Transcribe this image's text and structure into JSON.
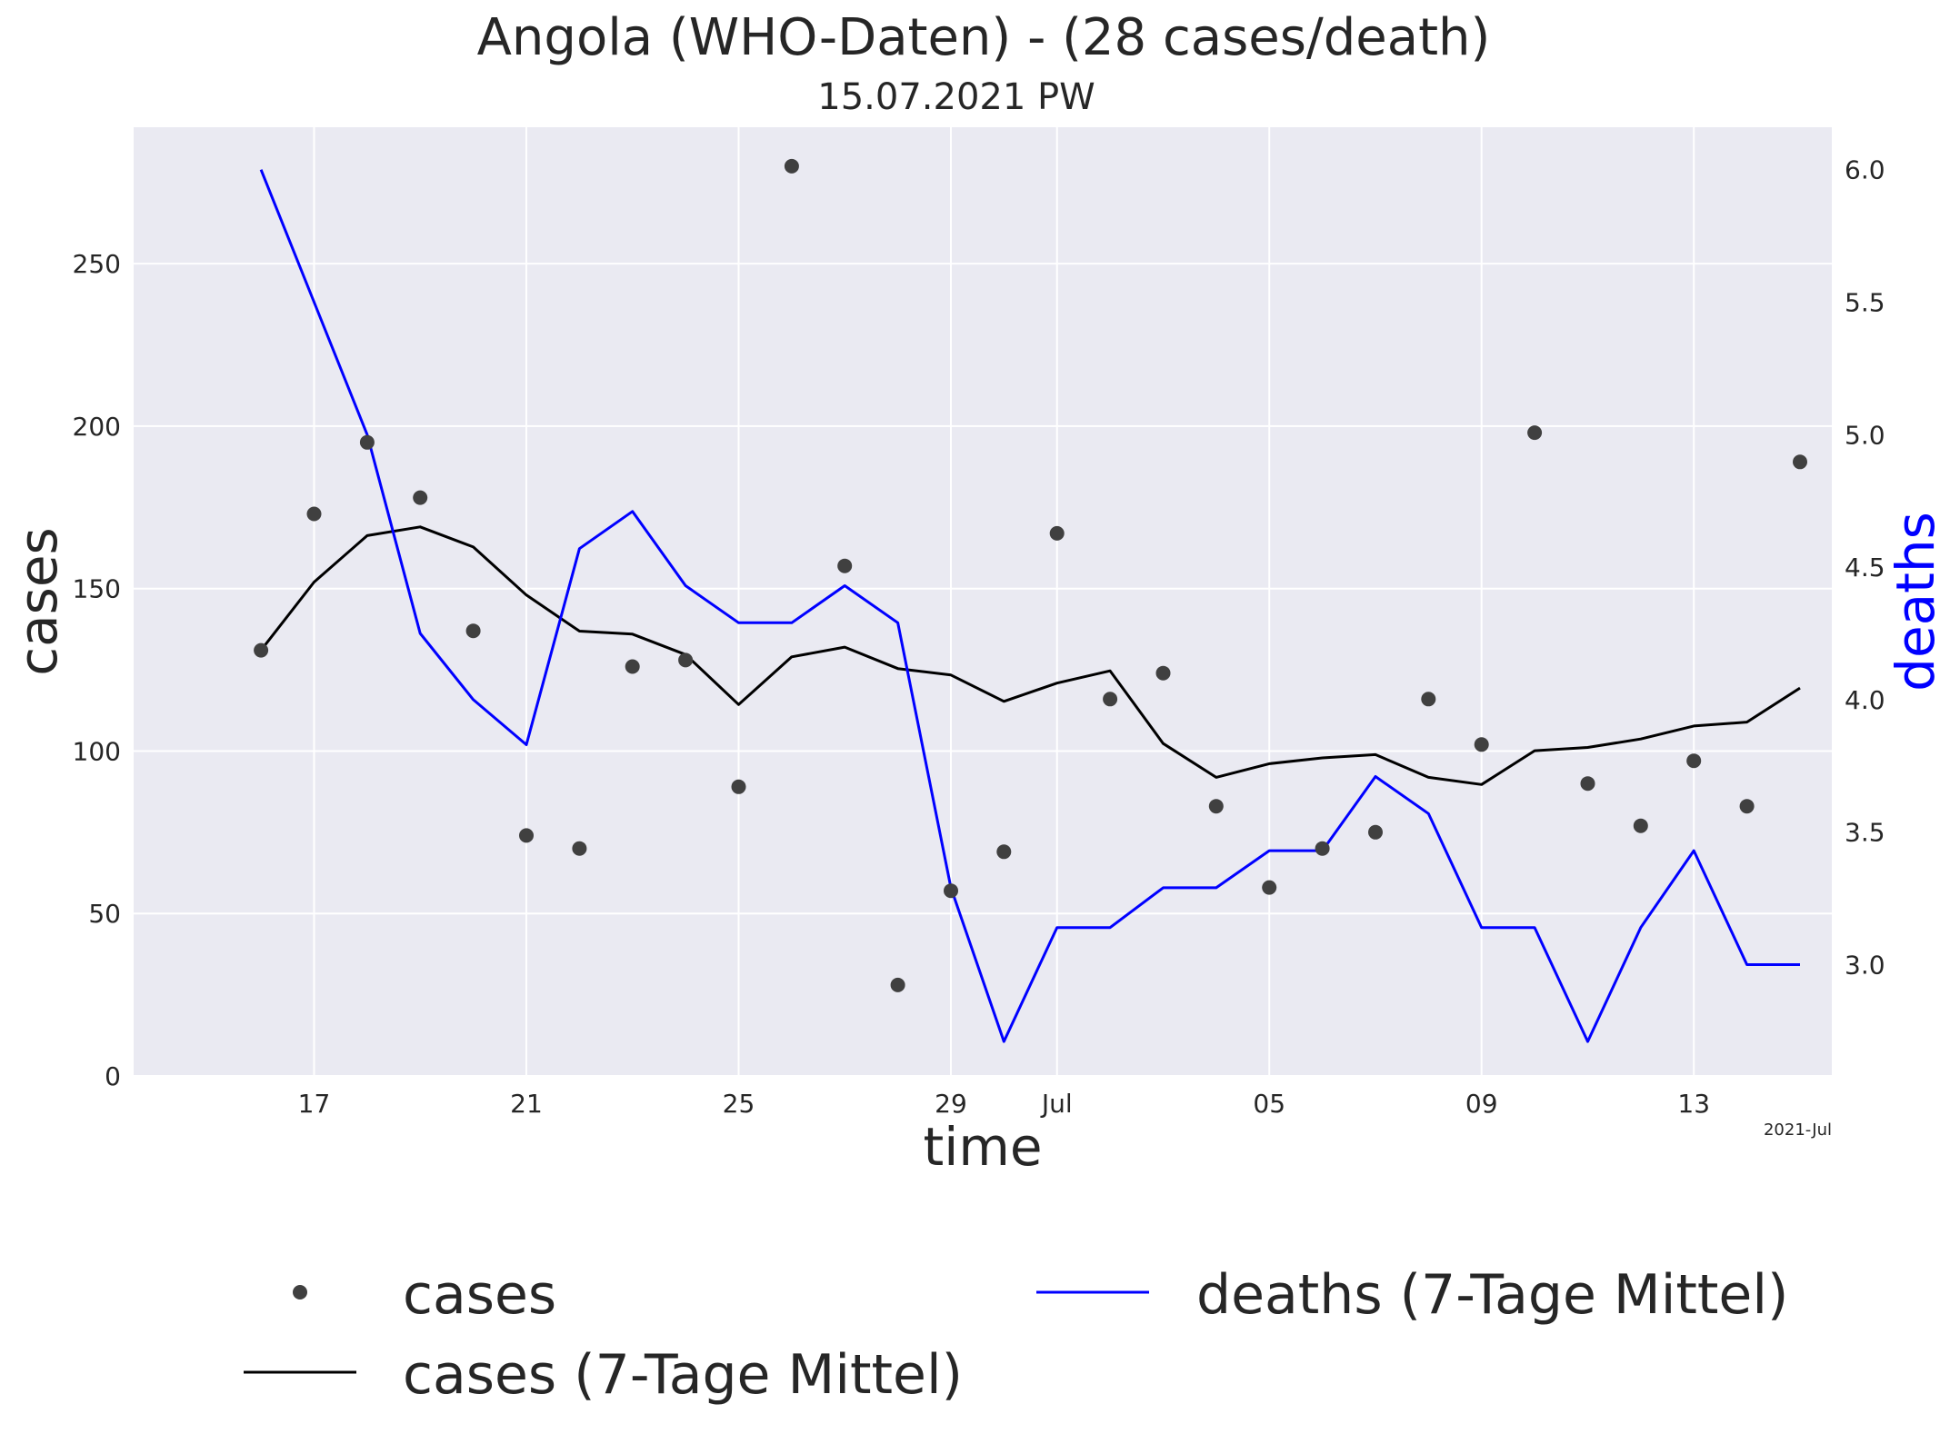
{
  "chart_data": {
    "type": "line",
    "title": "Angola (WHO-Daten) - (28 cases/death)",
    "subtitle": "15.07.2021 PW",
    "xlabel": "time",
    "ylabel": "cases",
    "y2label": "deaths",
    "x_offset_label": "2021-Jul",
    "x": [
      "2021-06-16",
      "2021-06-17",
      "2021-06-18",
      "2021-06-19",
      "2021-06-20",
      "2021-06-21",
      "2021-06-22",
      "2021-06-23",
      "2021-06-24",
      "2021-06-25",
      "2021-06-26",
      "2021-06-27",
      "2021-06-28",
      "2021-06-29",
      "2021-06-30",
      "2021-07-01",
      "2021-07-02",
      "2021-07-03",
      "2021-07-04",
      "2021-07-05",
      "2021-07-06",
      "2021-07-07",
      "2021-07-08",
      "2021-07-09",
      "2021-07-10",
      "2021-07-11",
      "2021-07-12",
      "2021-07-13",
      "2021-07-14",
      "2021-07-15"
    ],
    "xlim": [
      "2021-06-13.6",
      "2021-07-15.6"
    ],
    "x_ticks": [
      {
        "date": "2021-06-17",
        "label": "17"
      },
      {
        "date": "2021-06-21",
        "label": "21"
      },
      {
        "date": "2021-06-25",
        "label": "25"
      },
      {
        "date": "2021-06-29",
        "label": "29"
      },
      {
        "date": "2021-07-01",
        "label": "Jul"
      },
      {
        "date": "2021-07-05",
        "label": "05"
      },
      {
        "date": "2021-07-09",
        "label": "09"
      },
      {
        "date": "2021-07-13",
        "label": "13"
      }
    ],
    "ylim": [
      0,
      292
    ],
    "y_ticks": [
      0,
      50,
      100,
      150,
      200,
      250
    ],
    "y2lim": [
      2.58,
      6.16
    ],
    "y2_ticks": [
      "3.0",
      "3.5",
      "4.0",
      "4.5",
      "5.0",
      "5.5",
      "6.0"
    ],
    "series": [
      {
        "name": "cases",
        "kind": "scatter",
        "axis": "left",
        "color": "#404040",
        "values": [
          131,
          173,
          195,
          178,
          137,
          74,
          70,
          126,
          128,
          89,
          280,
          157,
          28,
          57,
          69,
          167,
          116,
          124,
          83,
          58,
          70,
          75,
          116,
          102,
          198,
          90,
          77,
          97,
          83,
          189
        ]
      },
      {
        "name": "cases (7-Tage Mittel)",
        "kind": "line",
        "axis": "left",
        "color": "#000000",
        "values": [
          131,
          152,
          166.3,
          169,
          162.8,
          148,
          136.9,
          136,
          129.7,
          114.3,
          129,
          132,
          125.4,
          123.4,
          115.3,
          120.9,
          124.7,
          102.3,
          91.9,
          96.1,
          97.9,
          98.9,
          91.9,
          89.7,
          100.1,
          101.1,
          103.7,
          107.7,
          108.9,
          119.4
        ]
      },
      {
        "name": "deaths (7-Tage Mittel)",
        "kind": "line",
        "axis": "right",
        "color": "#0000ff",
        "values": [
          6.0,
          5.5,
          5.0,
          4.25,
          4.0,
          3.83,
          4.57,
          4.71,
          4.43,
          4.29,
          4.29,
          4.43,
          4.29,
          3.29,
          2.71,
          3.14,
          3.14,
          3.29,
          3.29,
          3.43,
          3.43,
          3.71,
          3.57,
          3.14,
          3.14,
          2.71,
          3.14,
          3.43,
          3.0,
          3.0
        ]
      }
    ],
    "grid": true,
    "legend_position": "bottom"
  }
}
